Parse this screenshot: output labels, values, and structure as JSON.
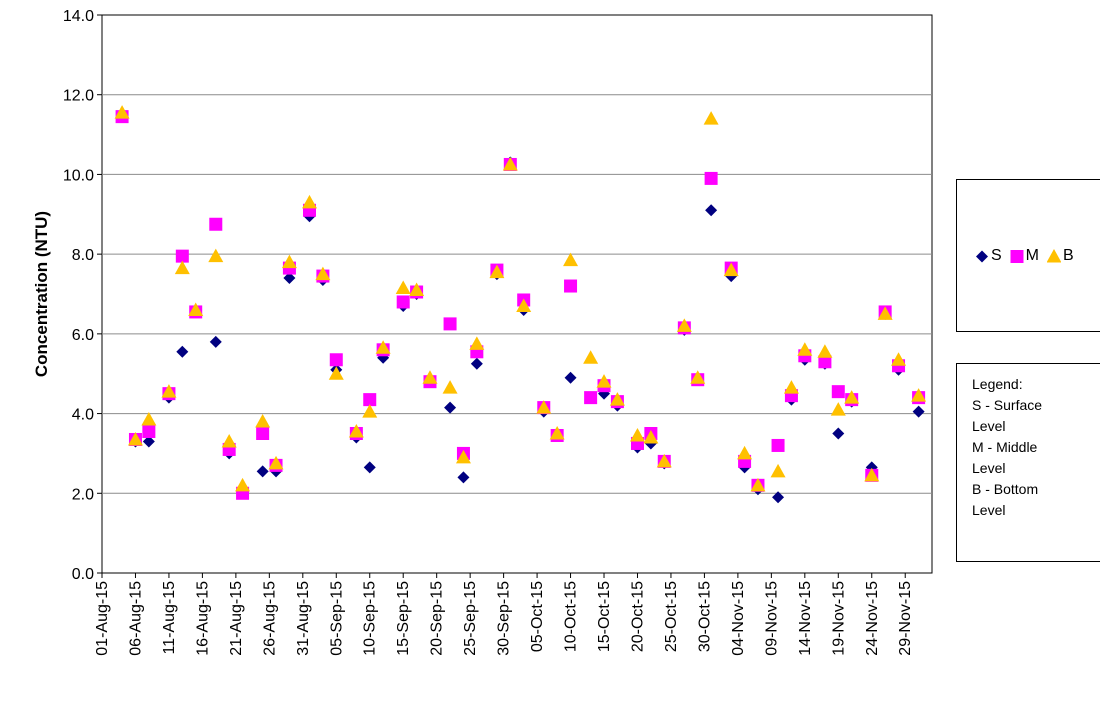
{
  "chart_data": {
    "type": "scatter",
    "title": "",
    "xlabel": "",
    "ylabel": "Concentration (NTU)",
    "ylim": [
      0,
      14
    ],
    "y_ticks": [
      "0.0",
      "2.0",
      "4.0",
      "6.0",
      "8.0",
      "10.0",
      "12.0",
      "14.0"
    ],
    "x_tick_labels": [
      "01-Aug-15",
      "06-Aug-15",
      "11-Aug-15",
      "16-Aug-15",
      "21-Aug-15",
      "26-Aug-15",
      "31-Aug-15",
      "05-Sep-15",
      "10-Sep-15",
      "15-Sep-15",
      "20-Sep-15",
      "25-Sep-15",
      "30-Sep-15",
      "05-Oct-15",
      "10-Oct-15",
      "15-Oct-15",
      "20-Oct-15",
      "25-Oct-15",
      "30-Oct-15",
      "04-Nov-15",
      "09-Nov-15",
      "14-Nov-15",
      "19-Nov-15",
      "24-Nov-15",
      "29-Nov-15"
    ],
    "xlim": [
      "2015-08-01",
      "2015-12-03"
    ],
    "grid": "horizontal",
    "dates": [
      "2015-08-04",
      "2015-08-06",
      "2015-08-08",
      "2015-08-11",
      "2015-08-13",
      "2015-08-15",
      "2015-08-18",
      "2015-08-20",
      "2015-08-22",
      "2015-08-25",
      "2015-08-27",
      "2015-08-29",
      "2015-09-01",
      "2015-09-03",
      "2015-09-05",
      "2015-09-08",
      "2015-09-10",
      "2015-09-12",
      "2015-09-15",
      "2015-09-17",
      "2015-09-19",
      "2015-09-22",
      "2015-09-24",
      "2015-09-26",
      "2015-09-29",
      "2015-10-01",
      "2015-10-03",
      "2015-10-06",
      "2015-10-08",
      "2015-10-10",
      "2015-10-13",
      "2015-10-15",
      "2015-10-17",
      "2015-10-20",
      "2015-10-22",
      "2015-10-24",
      "2015-10-27",
      "2015-10-29",
      "2015-10-31",
      "2015-11-03",
      "2015-11-05",
      "2015-11-07",
      "2015-11-10",
      "2015-11-12",
      "2015-11-14",
      "2015-11-17",
      "2015-11-19",
      "2015-11-21",
      "2015-11-24",
      "2015-11-26",
      "2015-11-28",
      "2015-12-01"
    ],
    "series": [
      {
        "name": "S",
        "marker": "diamond",
        "color": "#000080",
        "values": [
          11.5,
          3.3,
          3.3,
          4.4,
          5.55,
          6.55,
          5.8,
          3.0,
          2.1,
          2.55,
          2.55,
          7.4,
          8.95,
          7.35,
          5.1,
          3.4,
          2.65,
          5.4,
          6.7,
          7.0,
          4.8,
          4.15,
          2.4,
          5.25,
          7.5,
          10.3,
          6.6,
          4.05,
          3.5,
          4.9,
          4.4,
          4.5,
          4.2,
          3.15,
          3.25,
          2.75,
          6.1,
          4.85,
          9.1,
          7.45,
          2.65,
          2.1,
          1.9,
          4.35,
          5.35,
          5.25,
          3.5,
          4.3,
          2.65,
          6.5,
          5.1,
          4.05
        ]
      },
      {
        "name": "M",
        "marker": "square",
        "color": "#FF00FF",
        "values": [
          11.45,
          3.35,
          3.55,
          4.5,
          7.95,
          6.55,
          8.75,
          3.1,
          2.0,
          3.5,
          2.7,
          7.65,
          9.1,
          7.45,
          5.35,
          3.5,
          4.35,
          5.6,
          6.8,
          7.05,
          4.8,
          6.25,
          3.0,
          5.55,
          7.6,
          10.25,
          6.85,
          4.15,
          3.45,
          7.2,
          4.4,
          4.7,
          4.3,
          3.25,
          3.5,
          2.8,
          6.15,
          4.85,
          9.9,
          7.65,
          2.8,
          2.2,
          3.2,
          4.45,
          5.45,
          5.3,
          4.55,
          4.35,
          2.45,
          6.55,
          5.2,
          4.4
        ]
      },
      {
        "name": "B",
        "marker": "triangle",
        "color": "#FFC000",
        "values": [
          11.55,
          3.35,
          3.85,
          4.55,
          7.65,
          6.6,
          7.95,
          3.3,
          2.2,
          3.8,
          2.75,
          7.8,
          9.3,
          7.5,
          5.0,
          3.55,
          4.05,
          5.65,
          7.15,
          7.1,
          4.9,
          4.65,
          2.9,
          5.75,
          7.55,
          10.25,
          6.7,
          4.15,
          3.5,
          7.85,
          5.4,
          4.8,
          4.35,
          3.45,
          3.4,
          2.8,
          6.2,
          4.9,
          11.4,
          7.6,
          3.0,
          2.2,
          2.55,
          4.65,
          5.6,
          5.55,
          4.1,
          4.4,
          2.45,
          6.5,
          5.35,
          4.45
        ]
      }
    ],
    "legend": {
      "position": "right",
      "note_lines": [
        "Legend:",
        "S - Surface",
        "Level",
        "M - Middle",
        "Level",
        "B - Bottom",
        "Level"
      ]
    }
  }
}
